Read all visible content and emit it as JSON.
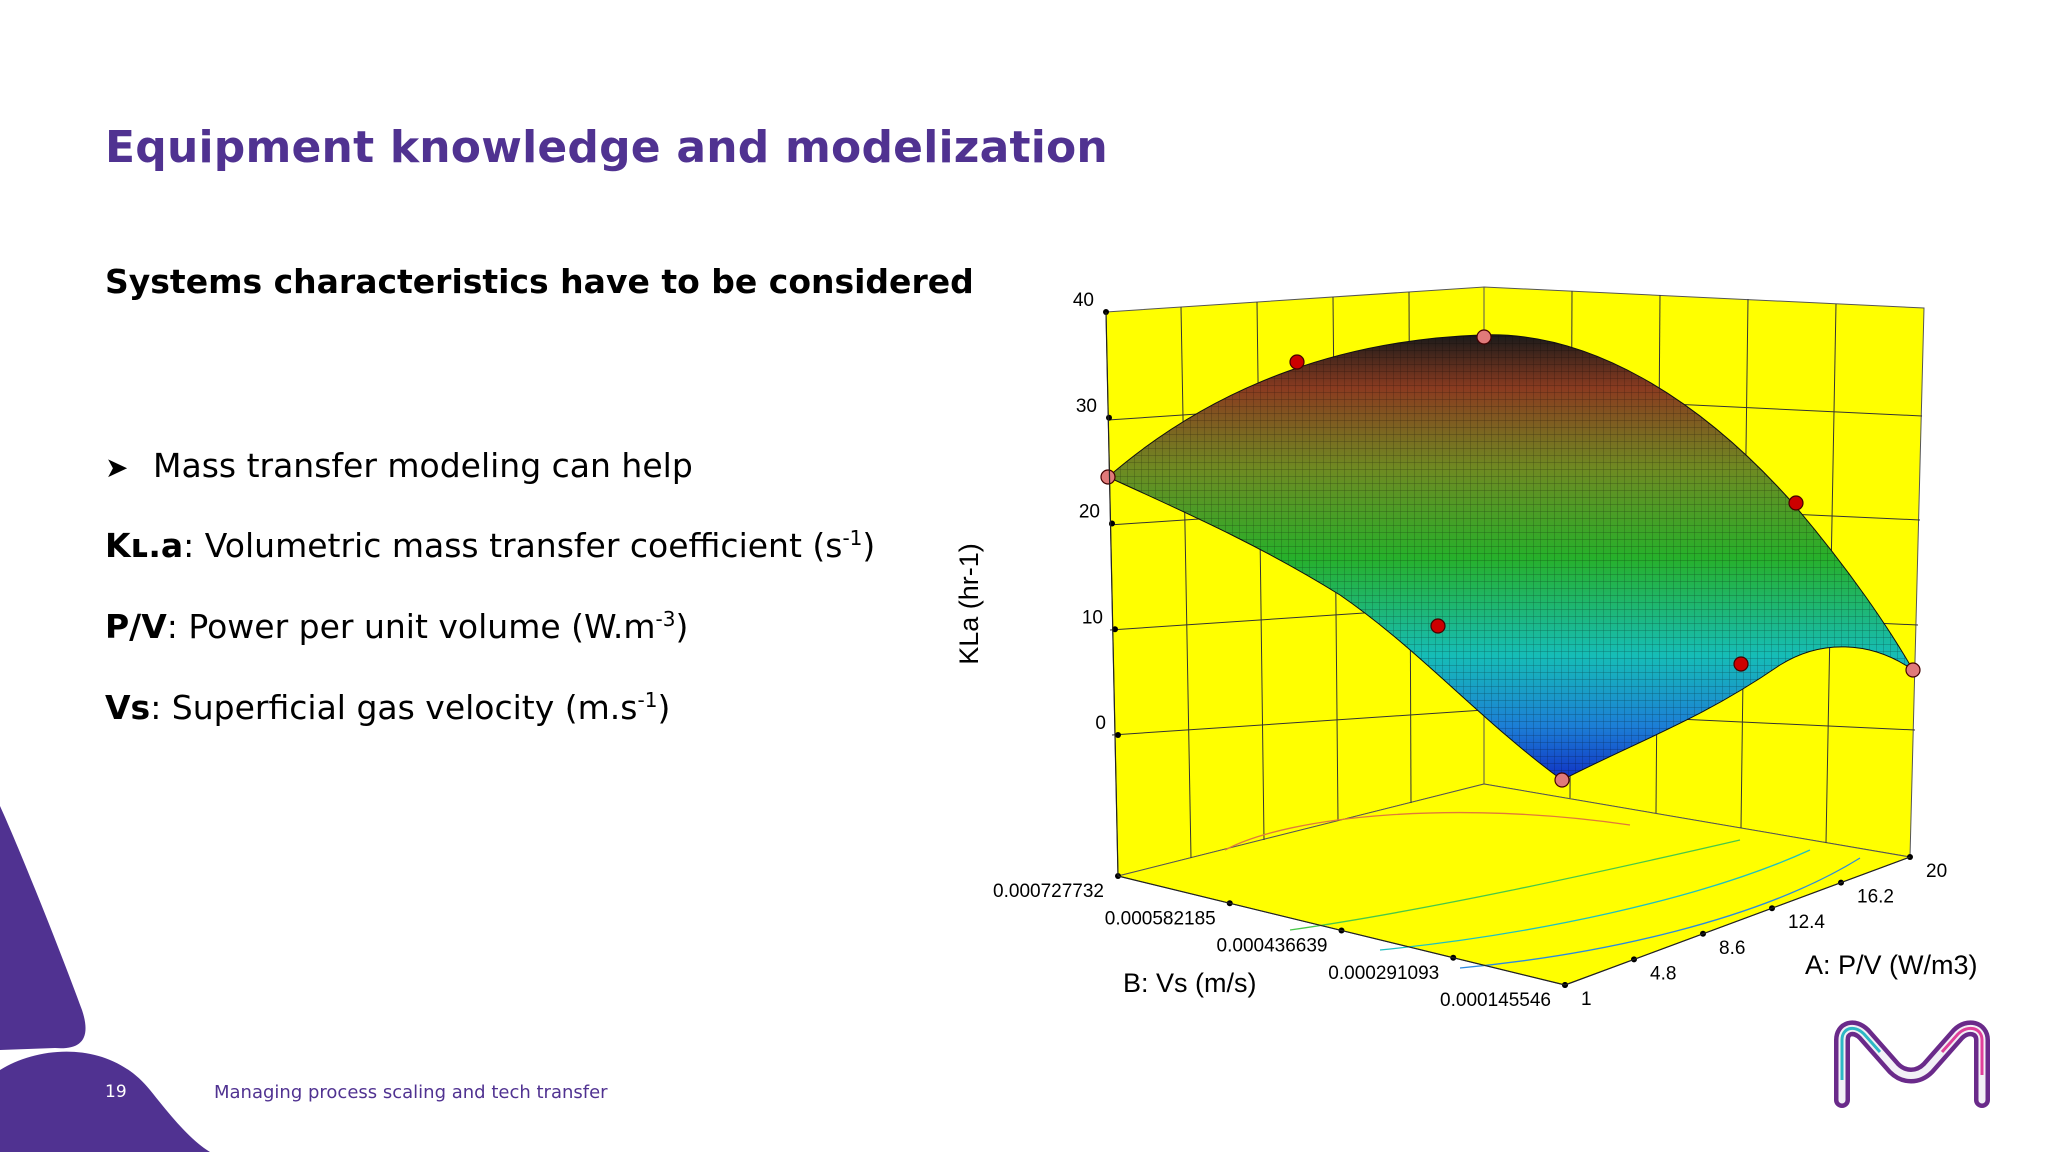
{
  "slide": {
    "title": "Equipment knowledge and modelization",
    "subtitle": "Systems characteristics have to be considered",
    "bullet": "Mass transfer modeling can help",
    "definitions": [
      {
        "term": "Kʟ.a",
        "desc": ": Volumetric mass transfer coefficient (s",
        "sup": "-1",
        "tail": ")"
      },
      {
        "term": "P/V",
        "desc": ": Power per unit volume (W.m",
        "sup": "-3",
        "tail": ")"
      },
      {
        "term": "Vs",
        "desc": ": Superficial gas velocity (m.s",
        "sup": "-1",
        "tail": ")"
      }
    ],
    "page_number": "19",
    "footer": "Managing process scaling and tech transfer",
    "icons": {
      "bullet": "arrowhead-bullet-icon",
      "logo": "brand-m-logo-icon",
      "decoration": "purple-corner-shape"
    }
  },
  "colors": {
    "brand": "#503291",
    "chart_background": "#ffff00",
    "design_point": "#cc0000",
    "design_point_edge": "#e07a7a"
  },
  "chart_data": {
    "type": "surface3d",
    "zlabel": "KLa (hr-1)",
    "xlabel": "A: P/V (W/m3)",
    "ylabel": "B: Vs (m/s)",
    "z_ticks": [
      "0",
      "10",
      "20",
      "30",
      "40"
    ],
    "x_ticks": [
      "1",
      "4.8",
      "8.6",
      "12.4",
      "16.2",
      "20"
    ],
    "y_ticks": [
      "0.000145546",
      "0.000291093",
      "0.000436639",
      "0.000582185",
      "0.000727732"
    ],
    "zlim": [
      0,
      40
    ],
    "xlim": [
      1,
      20
    ],
    "ylim": [
      0.000145546,
      0.000727732
    ],
    "colormap": "blue-cyan-green-yellow-red",
    "contours_on_base": true,
    "grid": true
  }
}
